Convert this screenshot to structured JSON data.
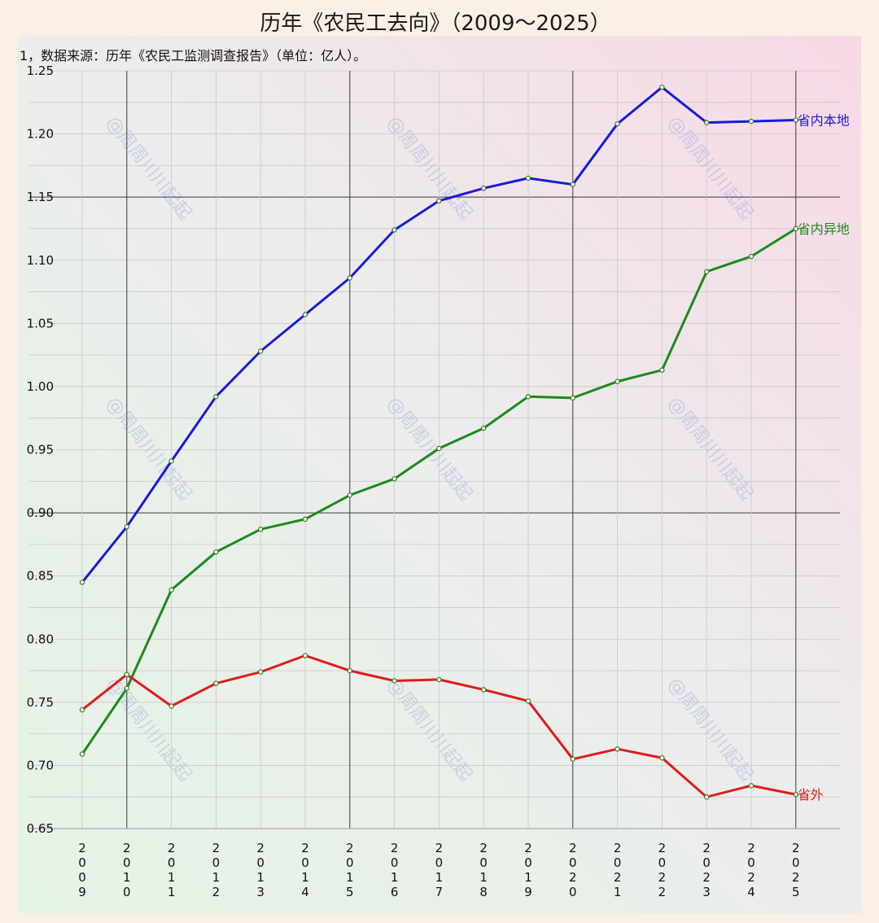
{
  "chart_data": {
    "type": "line",
    "title": "历年《农民工去向》（2009～2025）",
    "subtitle": "1，数据来源：历年《农民工监测调查报告》（单位：亿人）。",
    "watermark": "@周周川川起起",
    "x": [
      "2009",
      "2010",
      "2011",
      "2012",
      "2013",
      "2014",
      "2015",
      "2016",
      "2017",
      "2018",
      "2019",
      "2020",
      "2021",
      "2022",
      "2023",
      "2024",
      "2025"
    ],
    "ylim": [
      0.65,
      1.25
    ],
    "yticks": [
      "0.65",
      "0.70",
      "0.75",
      "0.80",
      "0.85",
      "0.90",
      "0.95",
      "1.00",
      "1.05",
      "1.10",
      "1.15",
      "1.20",
      "1.25"
    ],
    "grid": true,
    "series": [
      {
        "name": "省内本地",
        "color": "#1a1ad6",
        "values": [
          0.845,
          0.889,
          0.941,
          0.992,
          1.028,
          1.057,
          1.086,
          1.124,
          1.147,
          1.157,
          1.165,
          1.16,
          1.208,
          1.237,
          1.209,
          1.21,
          1.211
        ]
      },
      {
        "name": "省内异地",
        "color": "#1c8a1c",
        "values": [
          0.709,
          0.761,
          0.839,
          0.869,
          0.887,
          0.895,
          0.914,
          0.927,
          0.951,
          0.967,
          0.992,
          0.991,
          1.004,
          1.013,
          1.091,
          1.103,
          1.125
        ]
      },
      {
        "name": "省外",
        "color": "#e01b1b",
        "values": [
          0.744,
          0.772,
          0.747,
          0.765,
          0.774,
          0.787,
          0.775,
          0.767,
          0.768,
          0.76,
          0.751,
          0.705,
          0.713,
          0.706,
          0.675,
          0.684,
          0.677
        ]
      }
    ]
  }
}
